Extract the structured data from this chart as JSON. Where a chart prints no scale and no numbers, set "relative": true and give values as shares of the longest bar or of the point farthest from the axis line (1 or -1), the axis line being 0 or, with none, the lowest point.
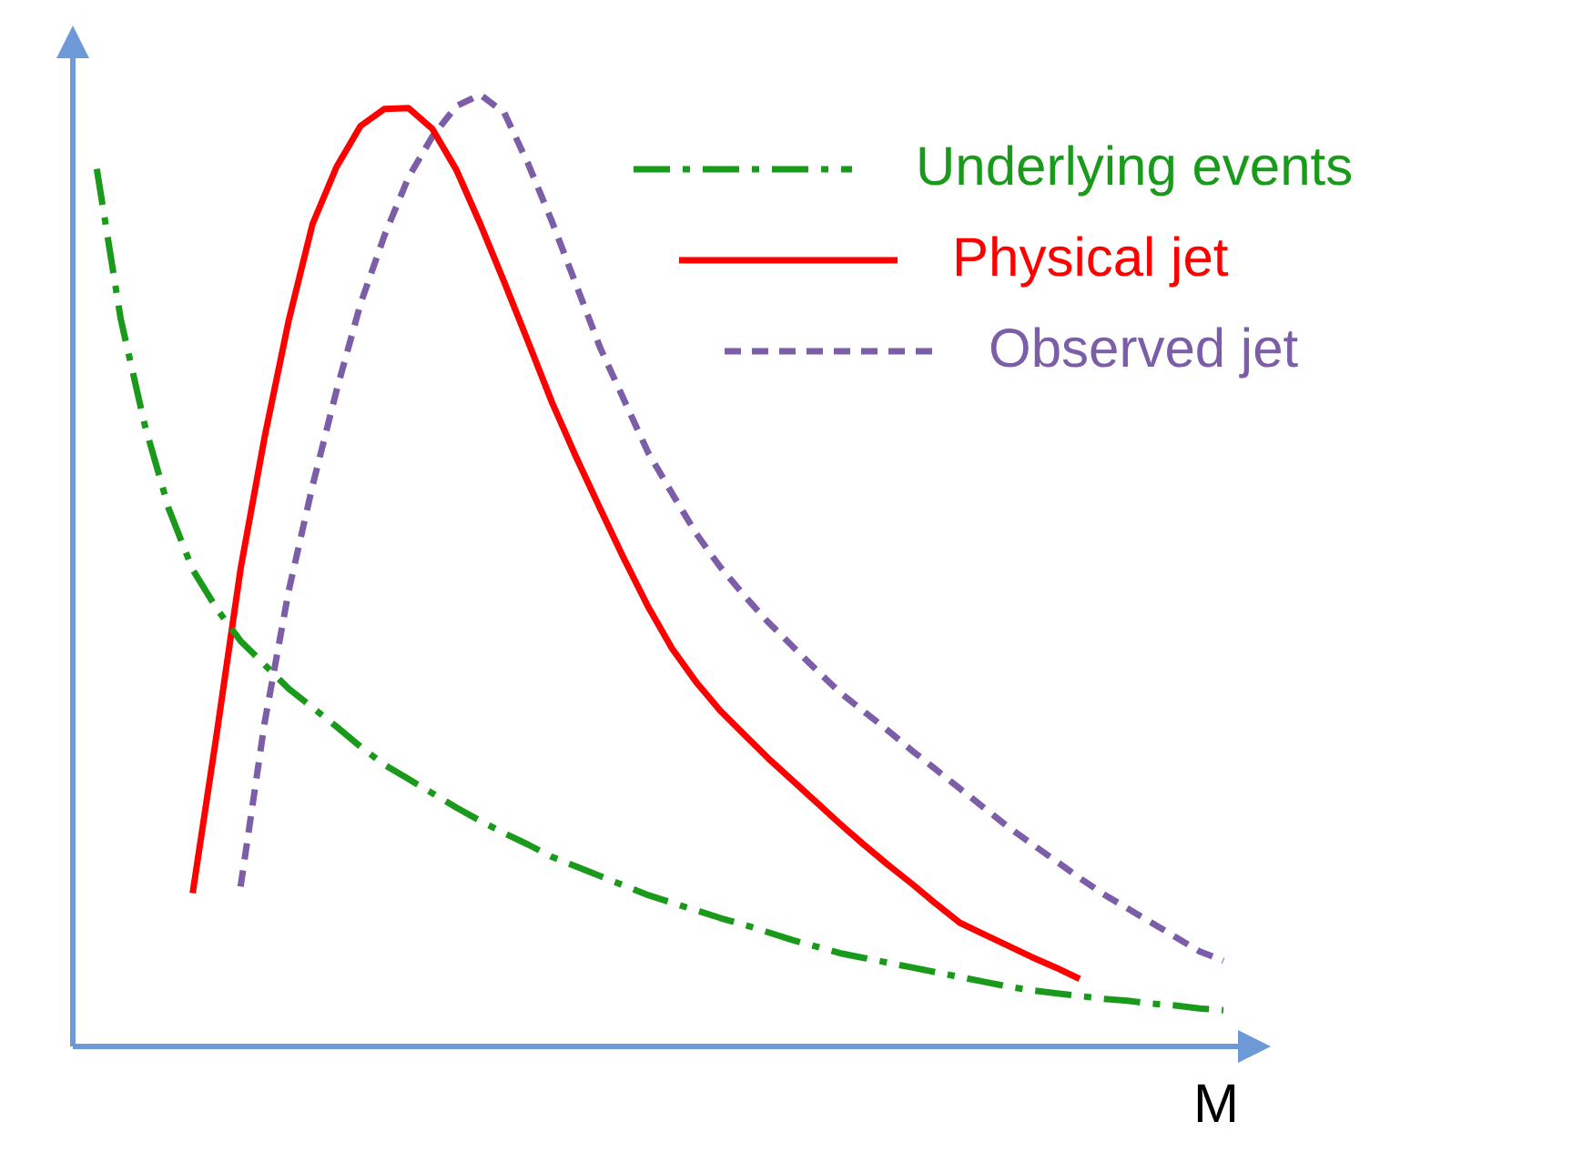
{
  "chart_data": {
    "type": "line",
    "relative": true,
    "xlabel": "M",
    "legend": "top right",
    "marker": "none",
    "categories": [
      null,
      null,
      null,
      null,
      null,
      null,
      null,
      null,
      null,
      null,
      null,
      null,
      null,
      null,
      null,
      null,
      null,
      null,
      null,
      null,
      null,
      null,
      null,
      null,
      null,
      null,
      null,
      null,
      null,
      null,
      null,
      null,
      null,
      null,
      null,
      null,
      null,
      null,
      null,
      null,
      null,
      null,
      null,
      null,
      null,
      null,
      null,
      null,
      null
    ],
    "series": [
      {
        "name": "Underlying events",
        "color": "#1a9a1a",
        "line_style": "dashdot",
        "values": [
          null,
          0.922,
          0.764,
          0.653,
          0.565,
          0.501,
          0.46,
          0.426,
          0.401,
          0.376,
          0.356,
          0.336,
          0.315,
          0.296,
          0.281,
          0.266,
          0.251,
          0.237,
          0.224,
          0.212,
          0.199,
          0.189,
          0.179,
          0.169,
          0.159,
          0.151,
          0.143,
          0.135,
          0.128,
          0.12,
          0.112,
          0.105,
          0.098,
          0.093,
          0.088,
          0.083,
          0.078,
          0.073,
          0.068,
          0.063,
          0.059,
          0.056,
          0.053,
          0.05,
          0.048,
          0.045,
          0.043,
          0.04,
          0.038
        ]
      },
      {
        "name": "Physical jet",
        "color": "#ff0000",
        "line_style": "solid",
        "values": [
          null,
          null,
          null,
          null,
          null,
          0.161,
          0.328,
          0.502,
          0.64,
          0.762,
          0.864,
          0.924,
          0.967,
          0.985,
          0.986,
          0.964,
          0.921,
          0.864,
          0.803,
          0.74,
          0.676,
          0.619,
          0.565,
          0.512,
          0.462,
          0.418,
          0.383,
          0.353,
          0.328,
          0.303,
          0.28,
          0.257,
          0.234,
          0.212,
          0.191,
          0.171,
          0.15,
          0.13,
          0.118,
          0.106,
          0.094,
          0.083,
          0.071,
          null,
          null,
          null,
          null,
          null,
          null
        ]
      },
      {
        "name": "Observed jet",
        "color": "#7b5ea7",
        "line_style": "dashed",
        "values": [
          null,
          null,
          null,
          null,
          null,
          null,
          null,
          0.168,
          0.34,
          0.478,
          0.589,
          0.689,
          0.78,
          0.852,
          0.913,
          0.956,
          0.988,
          1,
          0.981,
          0.927,
          0.866,
          0.8,
          0.734,
          0.679,
          0.624,
          0.581,
          0.539,
          0.504,
          0.474,
          0.446,
          0.421,
          0.396,
          0.372,
          0.352,
          0.332,
          0.311,
          0.291,
          0.271,
          0.251,
          0.231,
          0.213,
          0.195,
          0.177,
          0.16,
          0.145,
          0.13,
          0.115,
          0.1,
          0.09
        ]
      }
    ]
  }
}
